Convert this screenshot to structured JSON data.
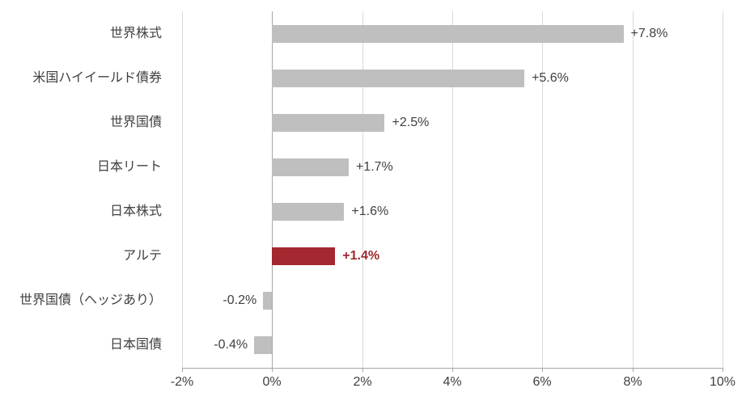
{
  "chart_data": {
    "type": "bar",
    "orientation": "horizontal",
    "categories": [
      "世界株式",
      "米国ハイイールド債券",
      "世界国債",
      "日本リート",
      "日本株式",
      "アルテ",
      "世界国債（ヘッジあり）",
      "日本国債"
    ],
    "values": [
      7.8,
      5.6,
      2.5,
      1.7,
      1.6,
      1.4,
      -0.2,
      -0.4
    ],
    "value_labels": [
      "+7.8%",
      "+5.6%",
      "+2.5%",
      "+1.7%",
      "+1.6%",
      "+1.4%",
      "-0.2%",
      "-0.4%"
    ],
    "highlight_index": 5,
    "xlim": [
      -2,
      10
    ],
    "x_ticks": [
      "-2%",
      "0%",
      "2%",
      "4%",
      "6%",
      "8%",
      "10%"
    ],
    "x_tick_values": [
      -2,
      0,
      2,
      4,
      6,
      8,
      10
    ],
    "grid": true,
    "legend": "none",
    "title": "",
    "xlabel": "",
    "ylabel": "",
    "colors": {
      "bar": "#bfbfbf",
      "highlight": "#a3282f",
      "text": "#404040",
      "grid": "#d9d9d9",
      "axis": "#a6a6a6"
    }
  }
}
